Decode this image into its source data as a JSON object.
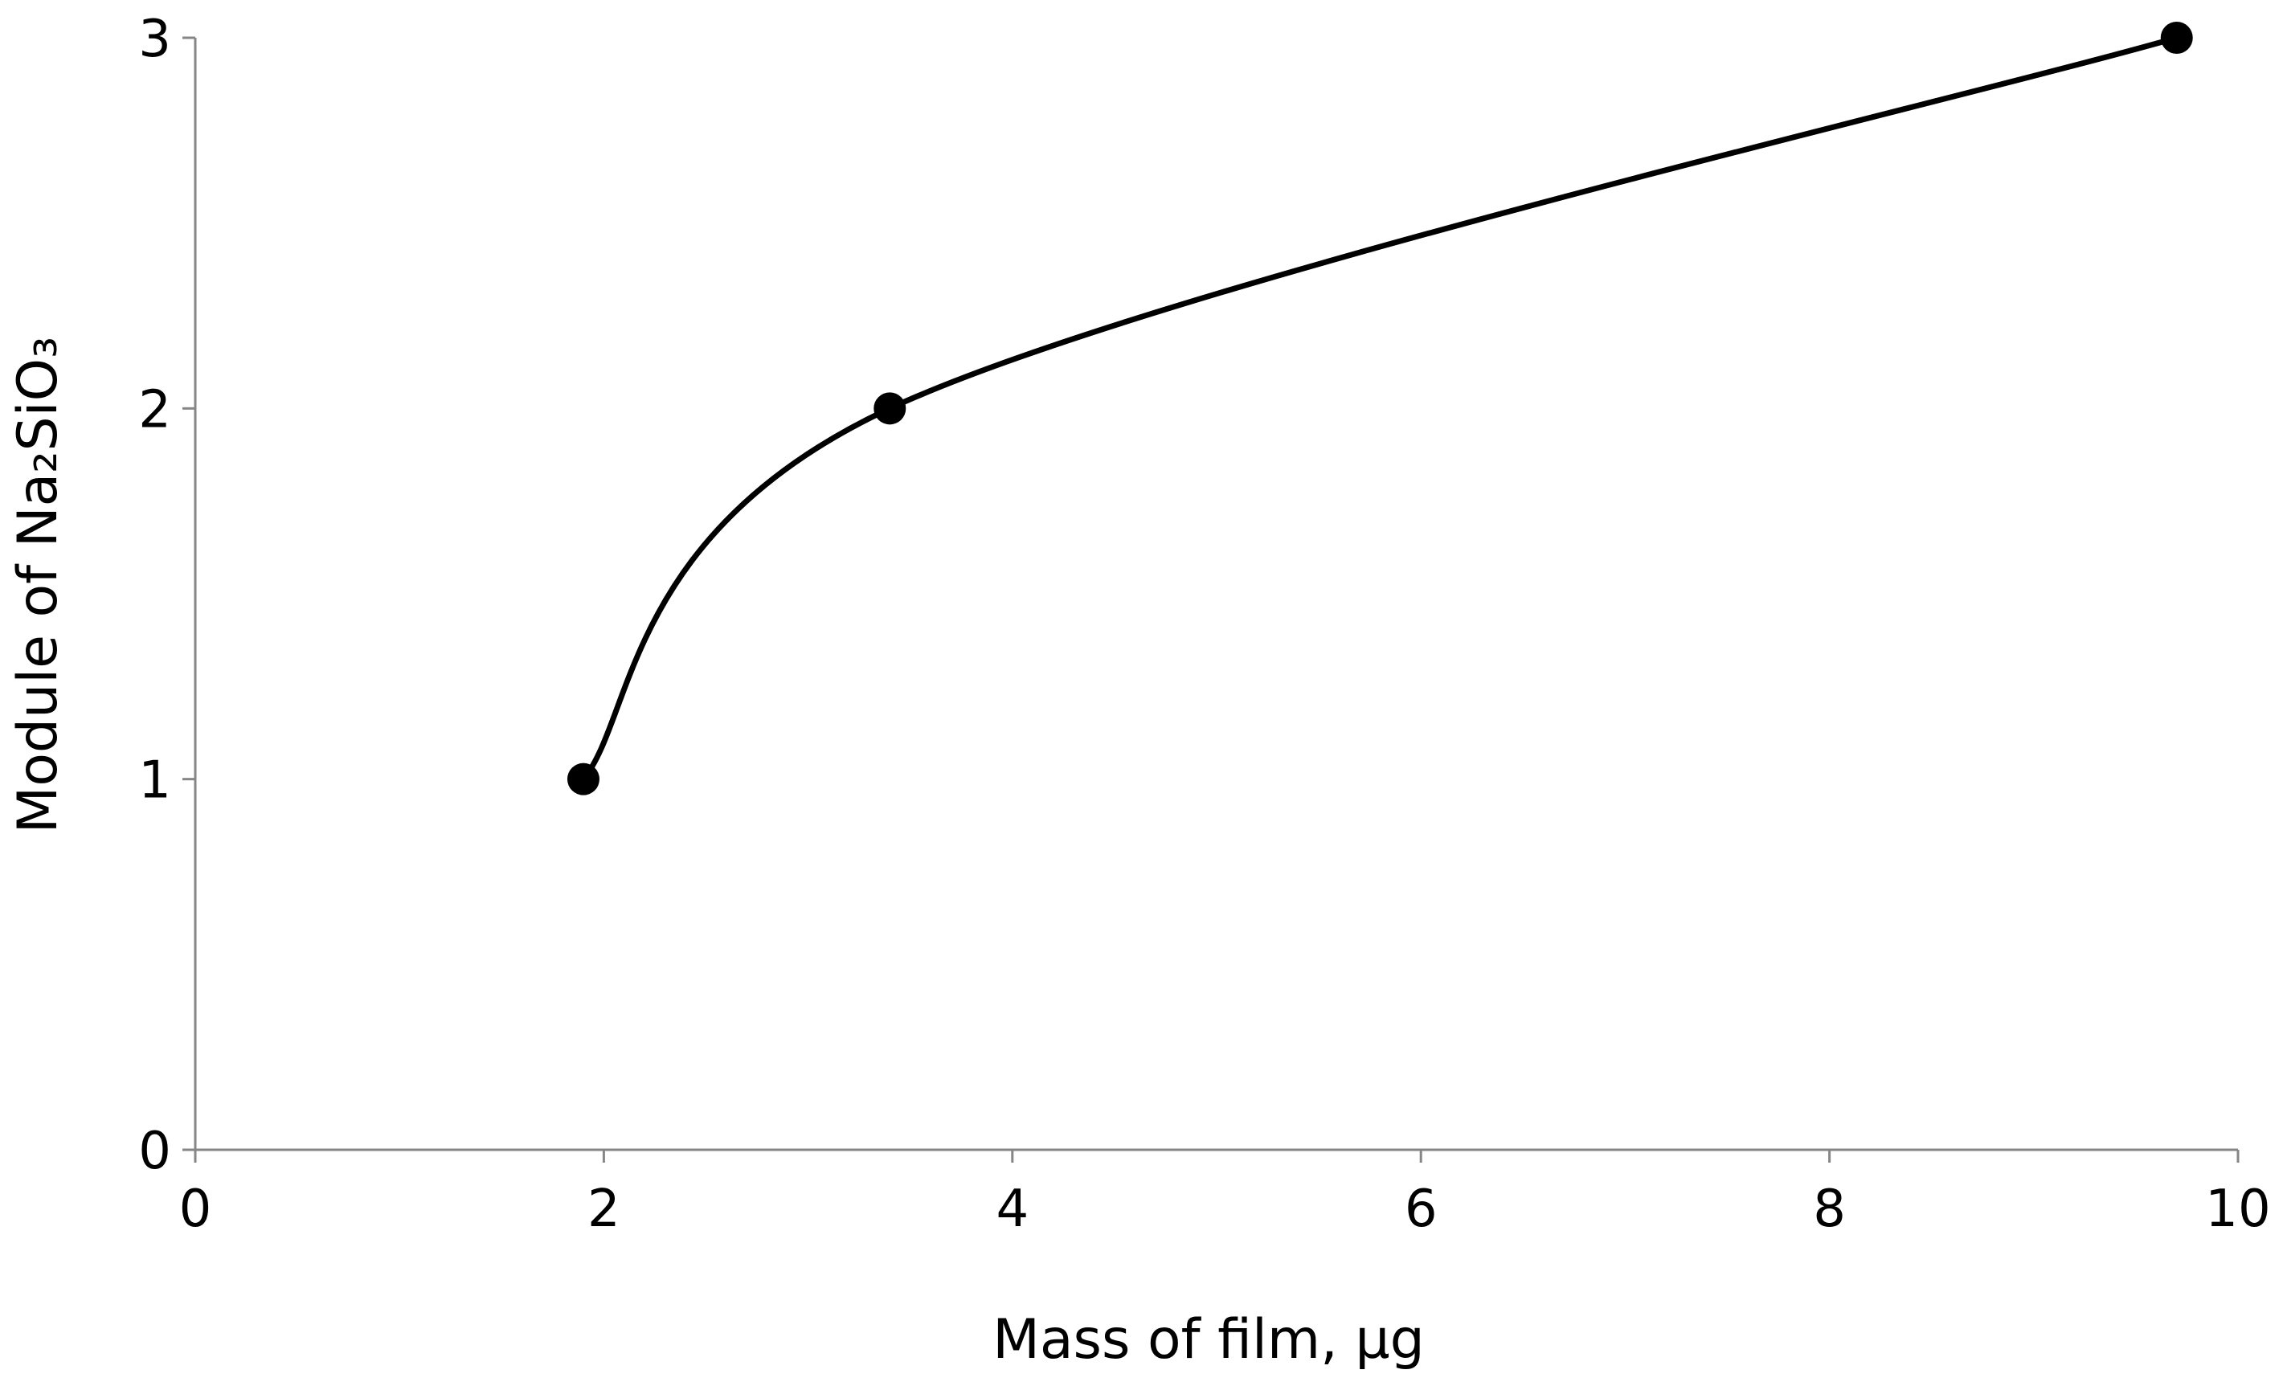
{
  "chart_data": {
    "type": "line",
    "x_label": "Mass of film, µg",
    "y_label": "Module of Na₂SiO₃",
    "x": [
      1.9,
      3.4,
      9.7
    ],
    "series": [
      {
        "name": "Module",
        "color": "#000000",
        "values": [
          1,
          2,
          3
        ]
      }
    ],
    "smooth": true,
    "markers": true,
    "xlim": [
      0,
      10
    ],
    "xticks": [
      0,
      2,
      4,
      6,
      8,
      10
    ],
    "ylim": [
      0,
      3
    ],
    "yticks": [
      0,
      1,
      2,
      3
    ],
    "axis_color": "#868686"
  }
}
